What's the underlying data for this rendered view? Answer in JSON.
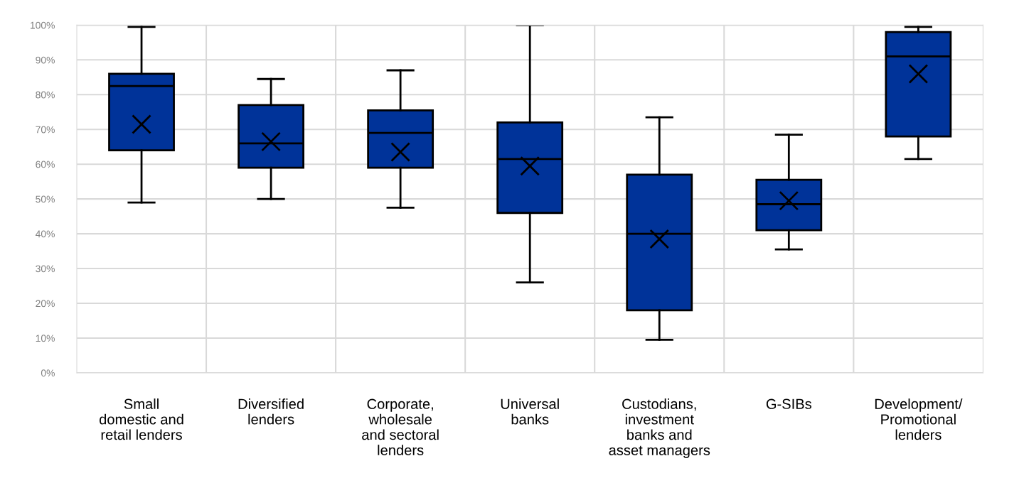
{
  "chart_data": {
    "type": "box",
    "categories": [
      "Small\ndomestic and\nretail lenders",
      "Diversified\nlenders",
      "Corporate,\nwholesale\nand sectoral\nlenders",
      "Universal\nbanks",
      "Custodians,\ninvestment\nbanks and\nasset managers",
      "G-SIBs",
      "Development/\nPromotional\nlenders"
    ],
    "boxes": [
      {
        "low": 49,
        "q1": 64,
        "median": 82.5,
        "q3": 86,
        "high": 99.5,
        "mean": 71.5
      },
      {
        "low": 50,
        "q1": 59,
        "median": 66,
        "q3": 77,
        "high": 84.5,
        "mean": 66.5
      },
      {
        "low": 47.5,
        "q1": 59,
        "median": 69,
        "q3": 75.5,
        "high": 87,
        "mean": 63.5
      },
      {
        "low": 26,
        "q1": 46,
        "median": 61.5,
        "q3": 72,
        "high": 100,
        "mean": 59.5
      },
      {
        "low": 9.5,
        "q1": 18,
        "median": 40,
        "q3": 57,
        "high": 73.5,
        "mean": 38.5
      },
      {
        "low": 35.5,
        "q1": 41,
        "median": 48.5,
        "q3": 55.5,
        "high": 68.5,
        "mean": 49.5
      },
      {
        "low": 61.5,
        "q1": 68,
        "median": 91,
        "q3": 98,
        "high": 99.5,
        "mean": 86
      }
    ],
    "color": "#003399",
    "ylim": [
      0,
      100
    ],
    "yticks": [
      {
        "value": 0,
        "label": "0%"
      },
      {
        "value": 10,
        "label": "10%"
      },
      {
        "value": 20,
        "label": "20%"
      },
      {
        "value": 30,
        "label": "30%"
      },
      {
        "value": 40,
        "label": "40%"
      },
      {
        "value": 50,
        "label": "50%"
      },
      {
        "value": 60,
        "label": "60%"
      },
      {
        "value": 70,
        "label": "70%"
      },
      {
        "value": 80,
        "label": "80%"
      },
      {
        "value": 90,
        "label": "90%"
      },
      {
        "value": 100,
        "label": "100%"
      }
    ],
    "grid": true
  }
}
